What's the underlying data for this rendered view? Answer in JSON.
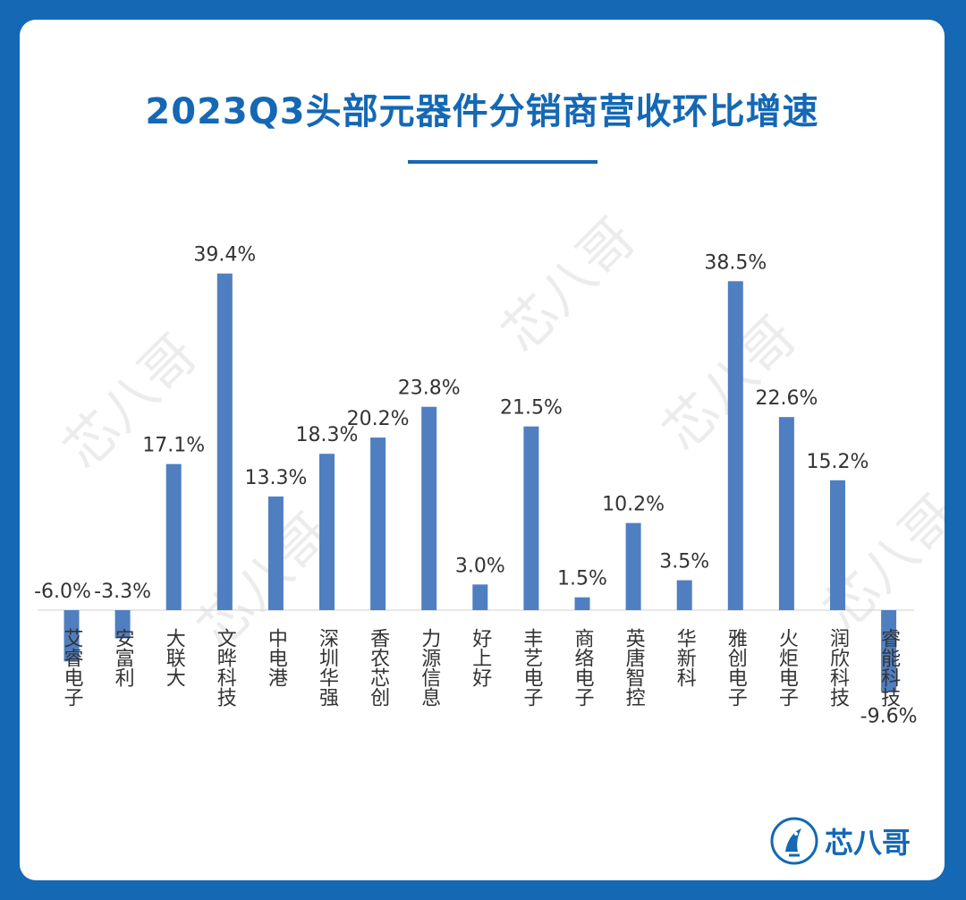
{
  "chart_data": {
    "type": "bar",
    "title": "2023Q3头部元器件分销商营收环比增速",
    "categories": [
      "艾睿电子",
      "安富利",
      "大联大",
      "文晔科技",
      "中电港",
      "深圳华强",
      "香农芯创",
      "力源信息",
      "好上好",
      "丰艺电子",
      "商络电子",
      "英唐智控",
      "华新科",
      "雅创电子",
      "火炬电子",
      "润欣科技",
      "睿能科技"
    ],
    "values": [
      -6.0,
      -3.3,
      17.1,
      39.4,
      13.3,
      18.3,
      20.2,
      23.8,
      3.0,
      21.5,
      1.5,
      10.2,
      3.5,
      38.5,
      22.6,
      15.2,
      -9.6
    ],
    "data_labels": [
      "-6.0%",
      "-3.3%",
      "17.1%",
      "39.4%",
      "13.3%",
      "18.3%",
      "20.2%",
      "23.8%",
      "3.0%",
      "21.5%",
      "1.5%",
      "10.2%",
      "3.5%",
      "38.5%",
      "22.6%",
      "15.2%",
      "-9.6%"
    ],
    "xlabel": "",
    "ylabel": "",
    "grid": false,
    "bar_color": "#4f7fc1"
  },
  "brand": {
    "name": "芯八哥",
    "watermark": "芯八哥"
  },
  "colors": {
    "background": "#1468b4",
    "title": "#1468b4"
  }
}
